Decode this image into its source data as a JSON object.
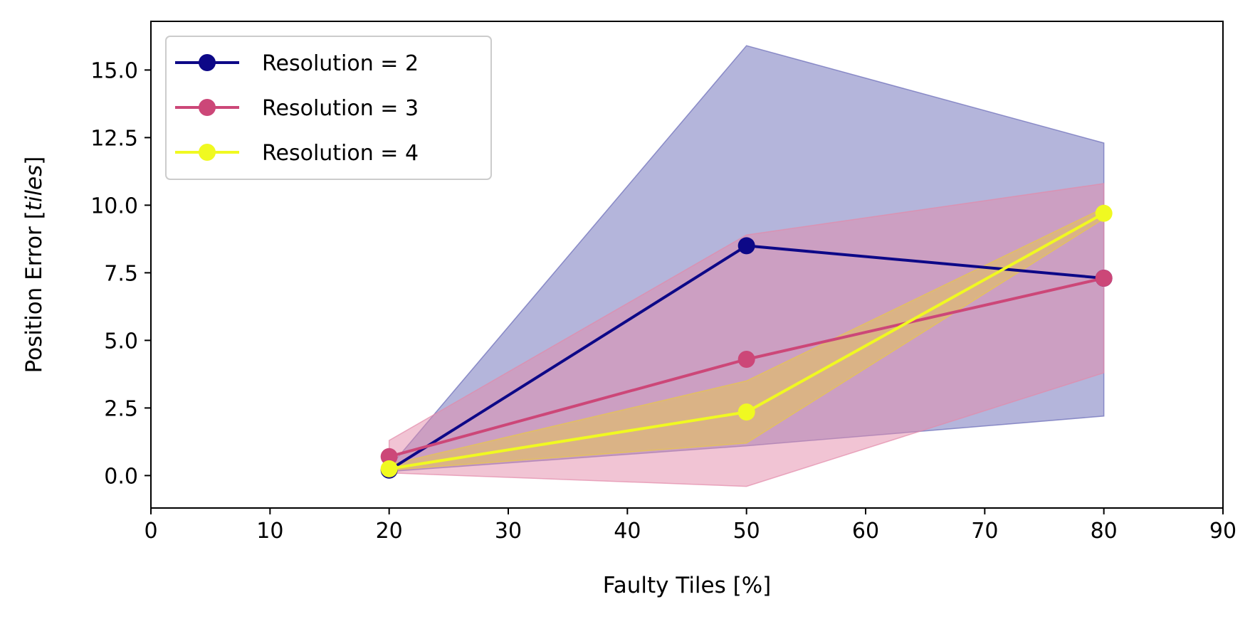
{
  "chart_data": {
    "type": "line",
    "xlabel": "Faulty Tiles [%]",
    "ylabel_prefix": "Position Error [",
    "ylabel_italic": "tiles",
    "ylabel_suffix": "]",
    "xlim": [
      0,
      90
    ],
    "ylim": [
      -1.2,
      16.8
    ],
    "xticks": [
      0,
      10,
      20,
      30,
      40,
      50,
      60,
      70,
      80,
      90
    ],
    "xtick_labels": [
      "0",
      "10",
      "20",
      "30",
      "40",
      "50",
      "60",
      "70",
      "80",
      "90"
    ],
    "yticks": [
      0.0,
      2.5,
      5.0,
      7.5,
      10.0,
      12.5,
      15.0
    ],
    "ytick_labels": [
      "0.0",
      "2.5",
      "5.0",
      "7.5",
      "10.0",
      "12.5",
      "15.0"
    ],
    "grid": false,
    "legend_position": "top-left",
    "series": [
      {
        "name": "Resolution = 2",
        "color": "#0d0887",
        "band_color": "#6a6bb8",
        "x": [
          20,
          50,
          80
        ],
        "y": [
          0.2,
          8.5,
          7.3
        ],
        "lower": [
          0.15,
          1.1,
          2.2
        ],
        "upper": [
          0.3,
          15.9,
          12.3
        ]
      },
      {
        "name": "Resolution = 3",
        "color": "#cc4778",
        "band_color": "#e38aa9",
        "x": [
          20,
          50,
          80
        ],
        "y": [
          0.7,
          4.3,
          7.3
        ],
        "lower": [
          0.1,
          -0.4,
          3.8
        ],
        "upper": [
          1.3,
          8.9,
          10.8
        ]
      },
      {
        "name": "Resolution = 4",
        "color": "#f0f921",
        "band_color": "#e8c84a",
        "x": [
          20,
          50,
          80
        ],
        "y": [
          0.25,
          2.35,
          9.7
        ],
        "lower": [
          0.2,
          1.2,
          9.5
        ],
        "upper": [
          0.4,
          3.5,
          9.9
        ]
      }
    ]
  }
}
